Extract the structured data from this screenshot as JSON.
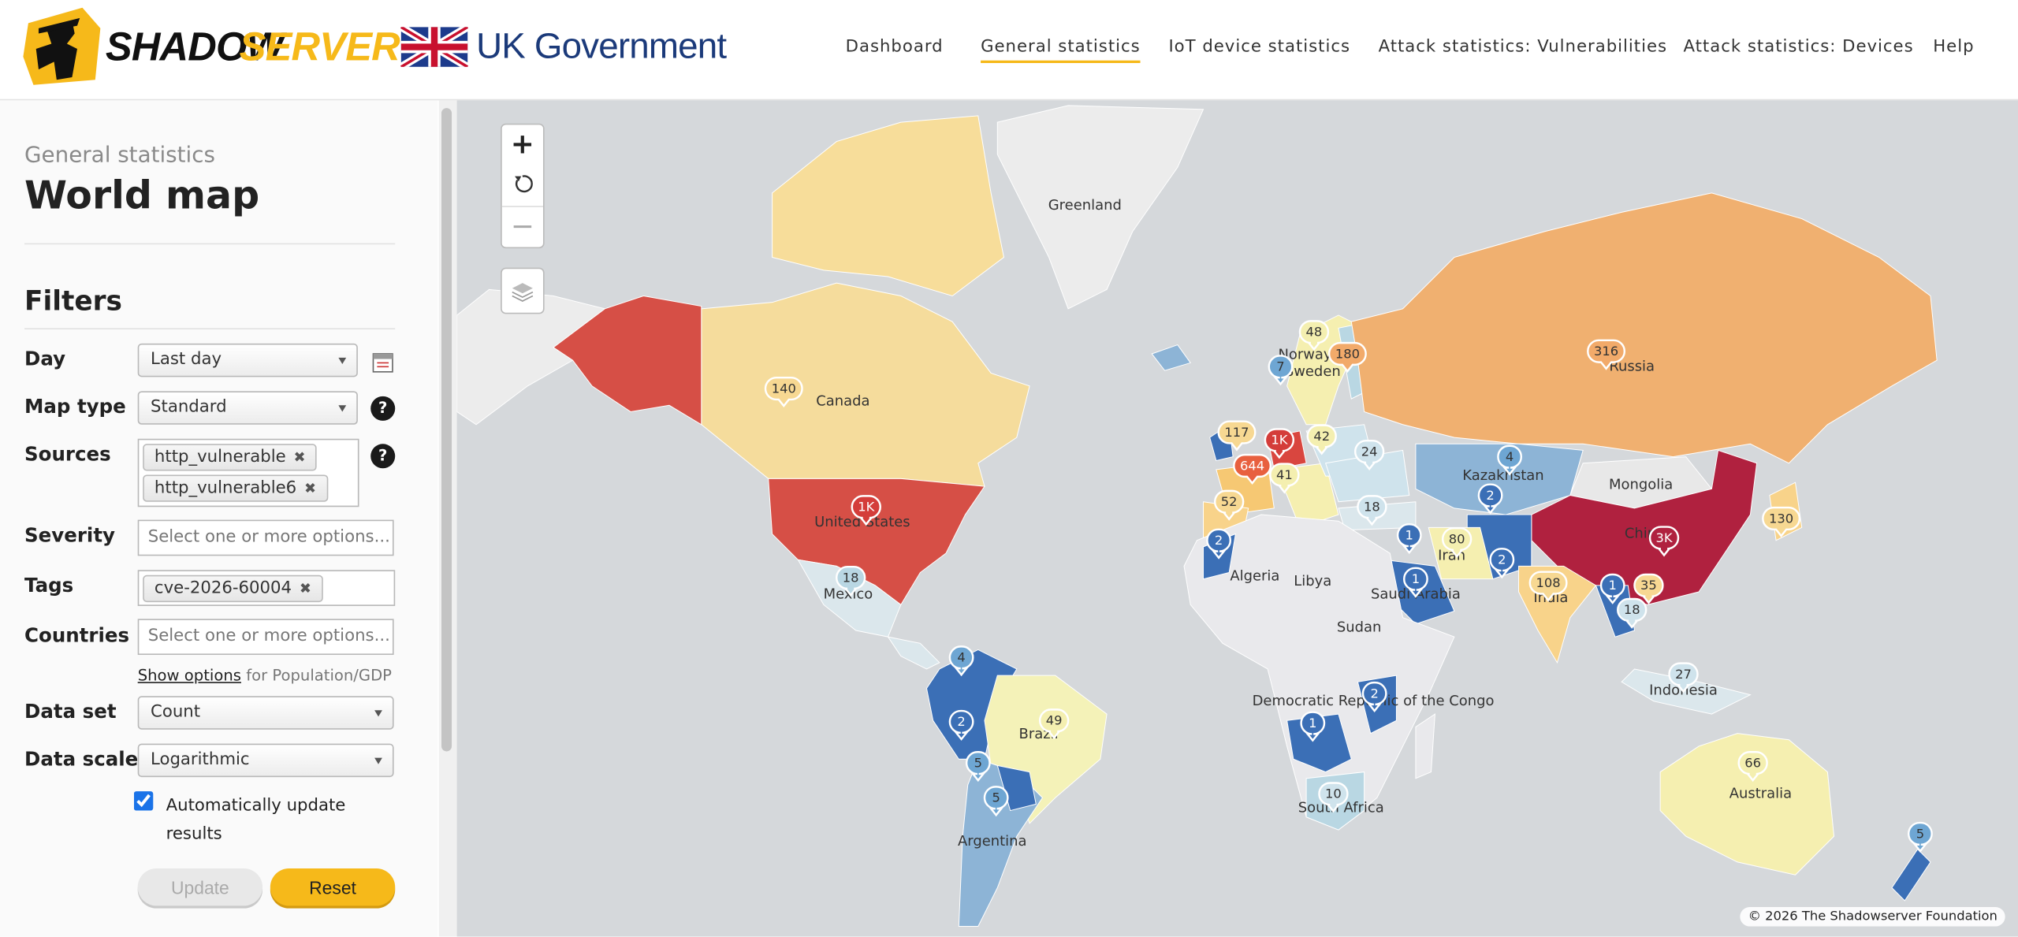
{
  "header": {
    "logo_part1": "SHADOW",
    "logo_part2": "SERVER",
    "partner": "UK Government",
    "nav": [
      "Dashboard",
      "General statistics",
      "IoT device statistics",
      "Attack statistics: Vulnerabilities",
      "Attack statistics: Devices",
      "Help"
    ],
    "active_nav": 1
  },
  "sidebar": {
    "breadcrumb": "General statistics",
    "title": "World map",
    "filters_heading": "Filters",
    "help_icon": "?",
    "tag_remove": "✖",
    "day": {
      "label": "Day",
      "value": "Last day"
    },
    "map_type": {
      "label": "Map type",
      "value": "Standard"
    },
    "sources": {
      "label": "Sources",
      "values": [
        "http_vulnerable",
        "http_vulnerable6"
      ]
    },
    "severity": {
      "label": "Severity",
      "placeholder": "Select one or more options..."
    },
    "tags": {
      "label": "Tags",
      "values": [
        "cve-2026-60004"
      ]
    },
    "countries": {
      "label": "Countries",
      "placeholder": "Select one or more options..."
    },
    "show_options": {
      "link": "Show options",
      "text": "for Population/GDP"
    },
    "data_set": {
      "label": "Data set",
      "value": "Count"
    },
    "data_scale": {
      "label": "Data scale",
      "value": "Logarithmic"
    },
    "auto_update": {
      "label": "Automatically update results",
      "checked": true
    },
    "buttons": {
      "update": "Update",
      "reset": "Reset"
    }
  },
  "map": {
    "controls": {
      "zoom_in": "+",
      "zoom_out": "−"
    },
    "country_labels": [
      "Greenland",
      "Canada",
      "United States",
      "Mexico",
      "Brazil",
      "Argentina",
      "Norway",
      "Sweden",
      "Russia",
      "Kazakhstan",
      "Mongolia",
      "China",
      "Iran",
      "Saudi Arabia",
      "India",
      "Algeria",
      "Libya",
      "Sudan",
      "Democratic Republic of the Congo",
      "South Africa",
      "Indonesia",
      "Australia"
    ],
    "markers": [
      {
        "label": "140",
        "color": "#f7d892"
      },
      {
        "label": "1K",
        "color": "#d43d3a"
      },
      {
        "label": "18",
        "color": "#b9d7e3"
      },
      {
        "label": "4",
        "color": "#6ea6d3"
      },
      {
        "label": "2",
        "color": "#3b6fb6"
      },
      {
        "label": "49",
        "color": "#f4efb0"
      },
      {
        "label": "5",
        "color": "#6ea6d3"
      },
      {
        "label": "5",
        "color": "#6ea6d3"
      },
      {
        "label": "48",
        "color": "#f4efb0"
      },
      {
        "label": "180",
        "color": "#f2aa6a"
      },
      {
        "label": "7",
        "color": "#6ea6d3"
      },
      {
        "label": "117",
        "color": "#f7d892"
      },
      {
        "label": "1K",
        "color": "#d43d3a"
      },
      {
        "label": "42",
        "color": "#f4efb0"
      },
      {
        "label": "24",
        "color": "#cfe3ec"
      },
      {
        "label": "644",
        "color": "#e8603f"
      },
      {
        "label": "41",
        "color": "#f4efb0"
      },
      {
        "label": "52",
        "color": "#f7d892"
      },
      {
        "label": "18",
        "color": "#cfe3ec"
      },
      {
        "label": "316",
        "color": "#f2aa6a"
      },
      {
        "label": "4",
        "color": "#6ea6d3"
      },
      {
        "label": "2",
        "color": "#3b6fb6"
      },
      {
        "label": "1",
        "color": "#3b6fb6"
      },
      {
        "label": "80",
        "color": "#f4efb0"
      },
      {
        "label": "2",
        "color": "#3b6fb6"
      },
      {
        "label": "1",
        "color": "#3b6fb6"
      },
      {
        "label": "2",
        "color": "#3b6fb6"
      },
      {
        "label": "3K",
        "color": "#b0213f"
      },
      {
        "label": "130",
        "color": "#f7d892"
      },
      {
        "label": "108",
        "color": "#f7d892"
      },
      {
        "label": "1",
        "color": "#3b6fb6"
      },
      {
        "label": "35",
        "color": "#f7d892"
      },
      {
        "label": "18",
        "color": "#cfe3ec"
      },
      {
        "label": "27",
        "color": "#cfe3ec"
      },
      {
        "label": "2",
        "color": "#3b6fb6"
      },
      {
        "label": "1",
        "color": "#3b6fb6"
      },
      {
        "label": "10",
        "color": "#cfe3ec"
      },
      {
        "label": "66",
        "color": "#f4efb0"
      },
      {
        "label": "5",
        "color": "#6ea6d3"
      }
    ],
    "attribution": "© 2026 The Shadowserver Foundation"
  }
}
